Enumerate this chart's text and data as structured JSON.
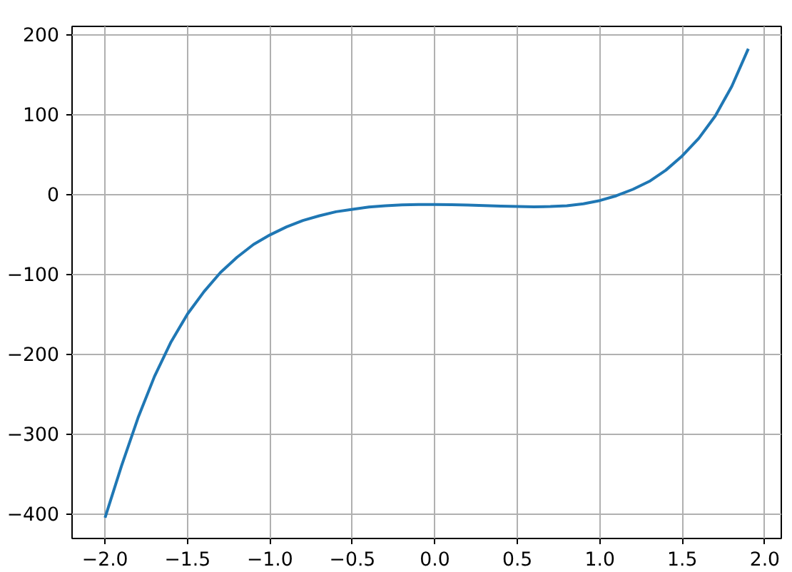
{
  "chart_data": {
    "type": "line",
    "x": [
      -2.0,
      -1.9,
      -1.8,
      -1.7,
      -1.6,
      -1.5,
      -1.4,
      -1.3,
      -1.2,
      -1.1,
      -1.0,
      -0.9,
      -0.8,
      -0.7,
      -0.6,
      -0.5,
      -0.4,
      -0.3,
      -0.2,
      -0.1,
      0.0,
      0.1,
      0.2,
      0.3,
      0.4,
      0.5,
      0.6,
      0.7,
      0.8,
      0.9,
      1.0,
      1.1,
      1.2,
      1.3,
      1.4,
      1.5,
      1.6,
      1.7,
      1.8,
      1.9
    ],
    "series": [
      {
        "color": "#1f77b4",
        "values": [
          -405,
          -340,
          -280,
          -228,
          -185,
          -150,
          -122,
          -98,
          -79,
          -63,
          -51,
          -41,
          -33,
          -27,
          -22,
          -19,
          -16,
          -14.5,
          -13.5,
          -13,
          -13,
          -13.2,
          -13.7,
          -14.3,
          -15,
          -15.5,
          -15.8,
          -15.5,
          -14.5,
          -12,
          -8,
          -2,
          6,
          16,
          30,
          48,
          70,
          98,
          135,
          182
        ]
      }
    ],
    "xlim": [
      -2.2,
      2.1
    ],
    "ylim": [
      -431,
      210
    ],
    "xticks": [
      {
        "value": -2.0,
        "label": "−2.0"
      },
      {
        "value": -1.5,
        "label": "−1.5"
      },
      {
        "value": -1.0,
        "label": "−1.0"
      },
      {
        "value": -0.5,
        "label": "−0.5"
      },
      {
        "value": 0.0,
        "label": "0.0"
      },
      {
        "value": 0.5,
        "label": "0.5"
      },
      {
        "value": 1.0,
        "label": "1.0"
      },
      {
        "value": 1.5,
        "label": "1.5"
      },
      {
        "value": 2.0,
        "label": "2.0"
      }
    ],
    "yticks": [
      {
        "value": -400,
        "label": "−400"
      },
      {
        "value": -300,
        "label": "−300"
      },
      {
        "value": -200,
        "label": "−200"
      },
      {
        "value": -100,
        "label": "−100"
      },
      0,
      100,
      200
    ],
    "grid": true,
    "marker": "none",
    "line_style": "solid"
  }
}
